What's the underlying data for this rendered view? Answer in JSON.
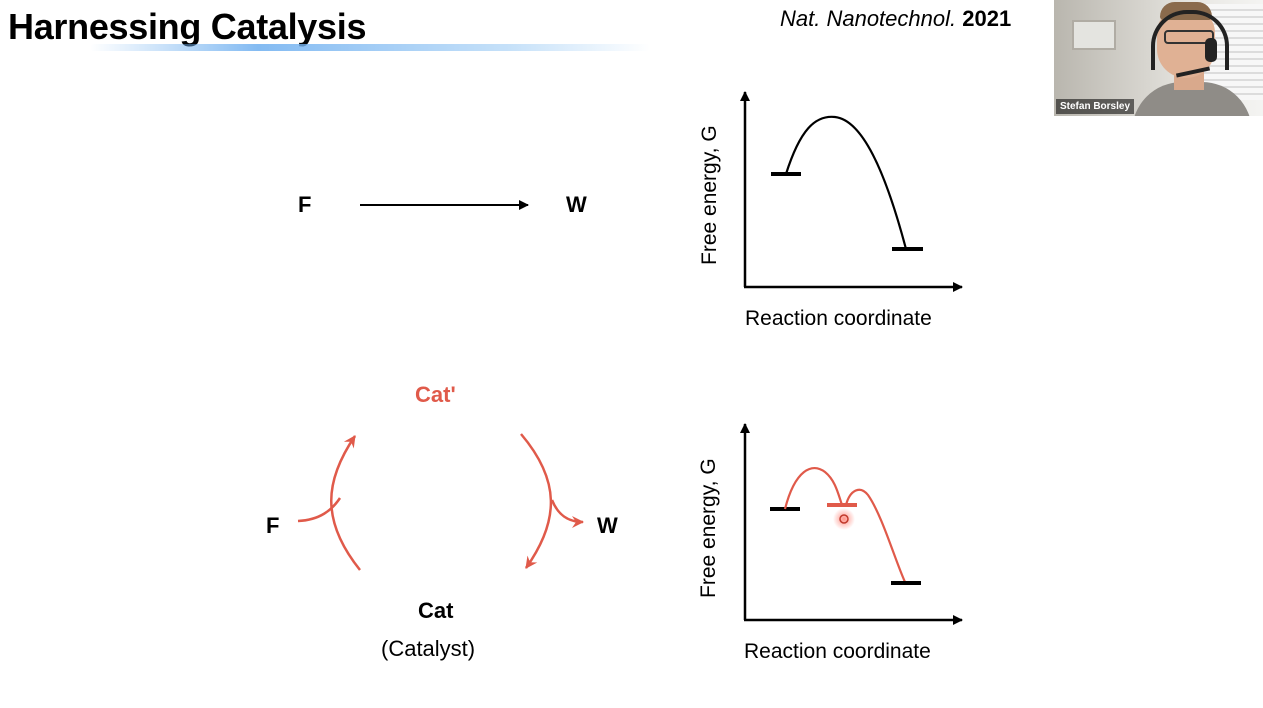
{
  "slide": {
    "title": "Harnessing Catalysis",
    "citation": {
      "journal": "Nat. Nanotechnol.",
      "year": "2021"
    }
  },
  "uncatalyzed": {
    "reactant": "F",
    "product": "W",
    "plot": {
      "y_axis_label": "Free energy, G",
      "x_axis_label": "Reaction coordinate"
    }
  },
  "catalyzed": {
    "reactant": "F",
    "product": "W",
    "intermediate": "Cat'",
    "catalyst": "Cat",
    "catalyst_note": "(Catalyst)",
    "plot": {
      "y_axis_label": "Free energy, G",
      "x_axis_label": "Reaction coordinate"
    }
  },
  "webcam": {
    "participant_name": "Stefan Borsley"
  },
  "colors": {
    "accent_red": "#e05a4a",
    "ink": "#000000"
  }
}
